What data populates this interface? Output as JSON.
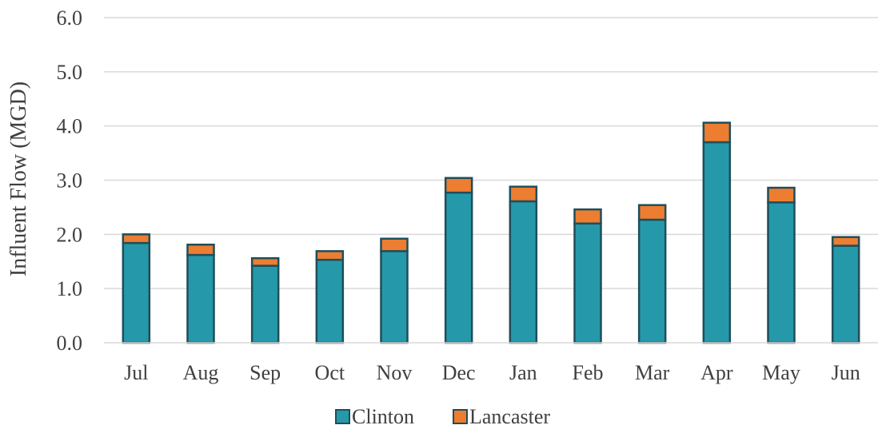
{
  "chart_data": {
    "type": "bar",
    "stacked": true,
    "title": "",
    "xlabel": "",
    "ylabel": "Influent Flow (MGD)",
    "ylim": [
      0,
      6
    ],
    "yticks": [
      "0.0",
      "1.0",
      "2.0",
      "3.0",
      "4.0",
      "5.0",
      "6.0"
    ],
    "grid": true,
    "legend_position": "bottom",
    "categories": [
      "Jul",
      "Aug",
      "Sep",
      "Oct",
      "Nov",
      "Dec",
      "Jan",
      "Feb",
      "Mar",
      "Apr",
      "May",
      "Jun"
    ],
    "series": [
      {
        "name": "Clinton",
        "color": "#2599AA",
        "values": [
          1.84,
          1.62,
          1.42,
          1.53,
          1.69,
          2.77,
          2.61,
          2.2,
          2.27,
          3.7,
          2.59,
          1.79
        ]
      },
      {
        "name": "Lancaster",
        "color": "#ED7D31",
        "values": [
          0.16,
          0.19,
          0.14,
          0.16,
          0.23,
          0.27,
          0.27,
          0.26,
          0.27,
          0.36,
          0.27,
          0.16
        ]
      }
    ],
    "bar_border_color": "#1F4E5A",
    "grid_color": "#D9D9D9"
  }
}
